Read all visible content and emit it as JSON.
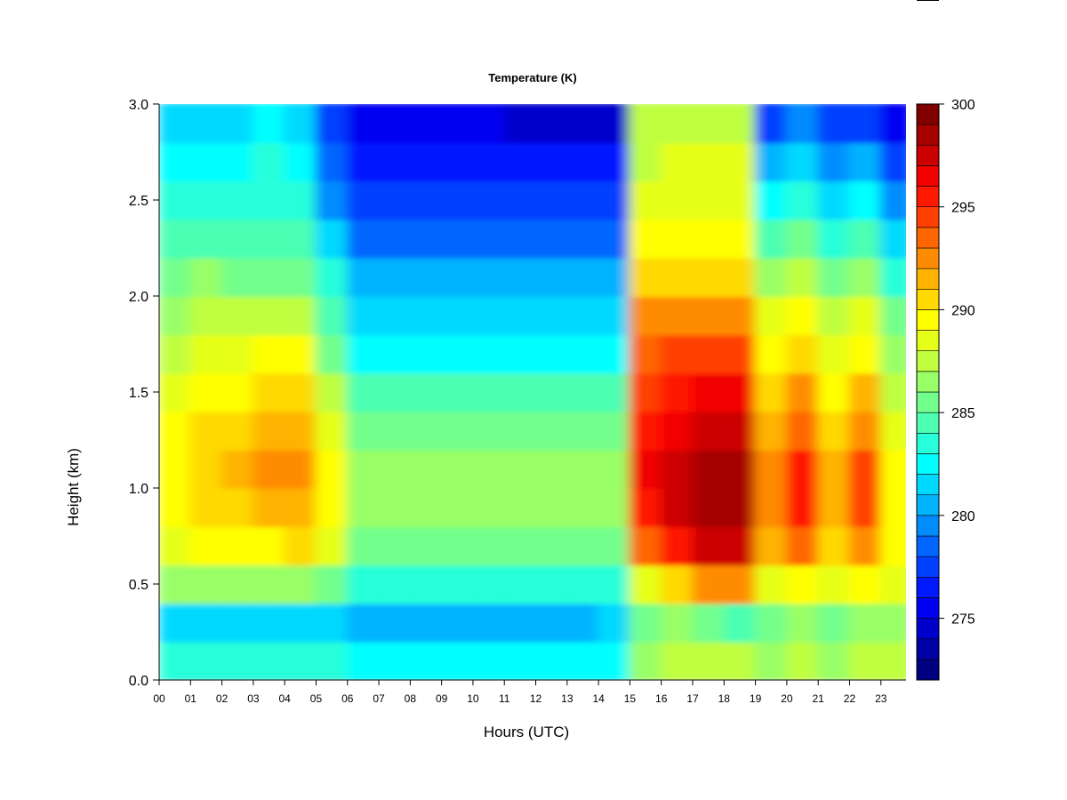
{
  "chart_data": {
    "type": "heatmap",
    "title": "Temperature (K)",
    "xlabel": "Hours (UTC)",
    "ylabel": "Height (km)",
    "xlim": [
      0,
      23.8
    ],
    "ylim": [
      0,
      3.0
    ],
    "x_ticks": [
      {
        "value": 0,
        "label": "00"
      },
      {
        "value": 1,
        "label": "01"
      },
      {
        "value": 2,
        "label": "02"
      },
      {
        "value": 3,
        "label": "03"
      },
      {
        "value": 4,
        "label": "04"
      },
      {
        "value": 5,
        "label": "05"
      },
      {
        "value": 6,
        "label": "06"
      },
      {
        "value": 7,
        "label": "07"
      },
      {
        "value": 8,
        "label": "08"
      },
      {
        "value": 9,
        "label": "09"
      },
      {
        "value": 10,
        "label": "10"
      },
      {
        "value": 11,
        "label": "11"
      },
      {
        "value": 12,
        "label": "12"
      },
      {
        "value": 13,
        "label": "13"
      },
      {
        "value": 14,
        "label": "14"
      },
      {
        "value": 15,
        "label": "15"
      },
      {
        "value": 16,
        "label": "16"
      },
      {
        "value": 17,
        "label": "17"
      },
      {
        "value": 18,
        "label": "18"
      },
      {
        "value": 19,
        "label": "19"
      },
      {
        "value": 20,
        "label": "20"
      },
      {
        "value": 21,
        "label": "21"
      },
      {
        "value": 22,
        "label": "22"
      },
      {
        "value": 23,
        "label": "23"
      }
    ],
    "y_ticks": [
      {
        "value": 0.0,
        "label": "0.0"
      },
      {
        "value": 0.5,
        "label": "0.5"
      },
      {
        "value": 1.0,
        "label": "1.0"
      },
      {
        "value": 1.5,
        "label": "1.5"
      },
      {
        "value": 2.0,
        "label": "2.0"
      },
      {
        "value": 2.5,
        "label": "2.5"
      },
      {
        "value": 3.0,
        "label": "3.0"
      }
    ],
    "colorbar": {
      "range": [
        272,
        300
      ],
      "step": 1,
      "tick_values": [
        275,
        280,
        285,
        290,
        295,
        300
      ],
      "tick_labels": [
        "275",
        "280",
        "285",
        "290",
        "295",
        "300"
      ],
      "colors": [
        "#000080",
        "#0000a6",
        "#0000cc",
        "#0000f2",
        "#0019ff",
        "#0040ff",
        "#0066ff",
        "#008cff",
        "#00b3ff",
        "#00d9ff",
        "#00ffff",
        "#26ffd9",
        "#4cffb3",
        "#73ff8c",
        "#99ff66",
        "#bfff40",
        "#e6ff19",
        "#ffff00",
        "#ffd900",
        "#ffb300",
        "#ff8c00",
        "#ff6600",
        "#ff4000",
        "#ff1900",
        "#f20000",
        "#cc0000",
        "#a60000",
        "#800000"
      ]
    },
    "description_hours": [
      0,
      1,
      2,
      3,
      4,
      5,
      6,
      7,
      8,
      9,
      10,
      11,
      12,
      13,
      14,
      15,
      16,
      17,
      18,
      19,
      20,
      21,
      22,
      23
    ],
    "heights_km": [
      0.1,
      0.3,
      0.5,
      0.7,
      0.9,
      1.1,
      1.3,
      1.5,
      1.7,
      1.9,
      2.1,
      2.3,
      2.5,
      2.7,
      2.9
    ],
    "values_K": [
      [
        283,
        281,
        286,
        288,
        289,
        289,
        289,
        288,
        287,
        286,
        285,
        284,
        283,
        282,
        281
      ],
      [
        283,
        281,
        286,
        289,
        290,
        290,
        290,
        289,
        288,
        287,
        286,
        284,
        283,
        282,
        281
      ],
      [
        283,
        281,
        286,
        289,
        290,
        291,
        290,
        289,
        288,
        287,
        285,
        284,
        283,
        282,
        281
      ],
      [
        283,
        281,
        286,
        289,
        291,
        292,
        291,
        290,
        289,
        287,
        285,
        284,
        283,
        283,
        282
      ],
      [
        283,
        281,
        286,
        290,
        291,
        292,
        291,
        290,
        289,
        287,
        285,
        284,
        283,
        282,
        281
      ],
      [
        283,
        281,
        285,
        288,
        289,
        289,
        288,
        287,
        285,
        284,
        283,
        281,
        279,
        278,
        277
      ],
      [
        282,
        280,
        283,
        285,
        286,
        286,
        285,
        284,
        282,
        281,
        280,
        278,
        277,
        276,
        275
      ],
      [
        282,
        280,
        283,
        285,
        286,
        286,
        285,
        284,
        282,
        281,
        280,
        278,
        277,
        276,
        275
      ],
      [
        282,
        280,
        283,
        285,
        286,
        286,
        285,
        284,
        282,
        281,
        280,
        278,
        277,
        276,
        275
      ],
      [
        282,
        280,
        283,
        285,
        286,
        286,
        285,
        284,
        282,
        281,
        280,
        278,
        277,
        276,
        275
      ],
      [
        282,
        280,
        283,
        285,
        286,
        286,
        285,
        284,
        282,
        281,
        280,
        278,
        277,
        276,
        275
      ],
      [
        282,
        280,
        283,
        285,
        286,
        286,
        285,
        284,
        282,
        281,
        280,
        278,
        277,
        276,
        274
      ],
      [
        282,
        280,
        283,
        285,
        286,
        286,
        285,
        284,
        282,
        281,
        280,
        278,
        277,
        276,
        274
      ],
      [
        282,
        280,
        283,
        285,
        286,
        286,
        285,
        284,
        282,
        281,
        280,
        278,
        277,
        276,
        274
      ],
      [
        282,
        281,
        283,
        285,
        286,
        286,
        285,
        284,
        282,
        281,
        280,
        278,
        277,
        276,
        274
      ],
      [
        286,
        285,
        288,
        293,
        295,
        296,
        295,
        294,
        293,
        292,
        290,
        289,
        288,
        287,
        287
      ],
      [
        287,
        286,
        290,
        295,
        297,
        297,
        296,
        295,
        294,
        292,
        290,
        289,
        288,
        288,
        287
      ],
      [
        287,
        285,
        292,
        297,
        298,
        298,
        297,
        296,
        294,
        292,
        290,
        289,
        288,
        288,
        287
      ],
      [
        287,
        284,
        292,
        297,
        298,
        298,
        297,
        296,
        294,
        292,
        290,
        289,
        288,
        288,
        287
      ],
      [
        286,
        285,
        288,
        291,
        292,
        292,
        291,
        290,
        289,
        288,
        286,
        284,
        282,
        280,
        277
      ],
      [
        287,
        286,
        289,
        293,
        295,
        295,
        293,
        292,
        290,
        289,
        287,
        285,
        283,
        281,
        279
      ],
      [
        286,
        285,
        288,
        290,
        291,
        291,
        290,
        289,
        288,
        287,
        285,
        283,
        281,
        279,
        277
      ],
      [
        287,
        286,
        289,
        292,
        294,
        294,
        292,
        291,
        289,
        288,
        286,
        284,
        282,
        280,
        277
      ],
      [
        287,
        286,
        288,
        289,
        289,
        289,
        288,
        287,
        286,
        285,
        283,
        281,
        279,
        277,
        275
      ]
    ]
  }
}
